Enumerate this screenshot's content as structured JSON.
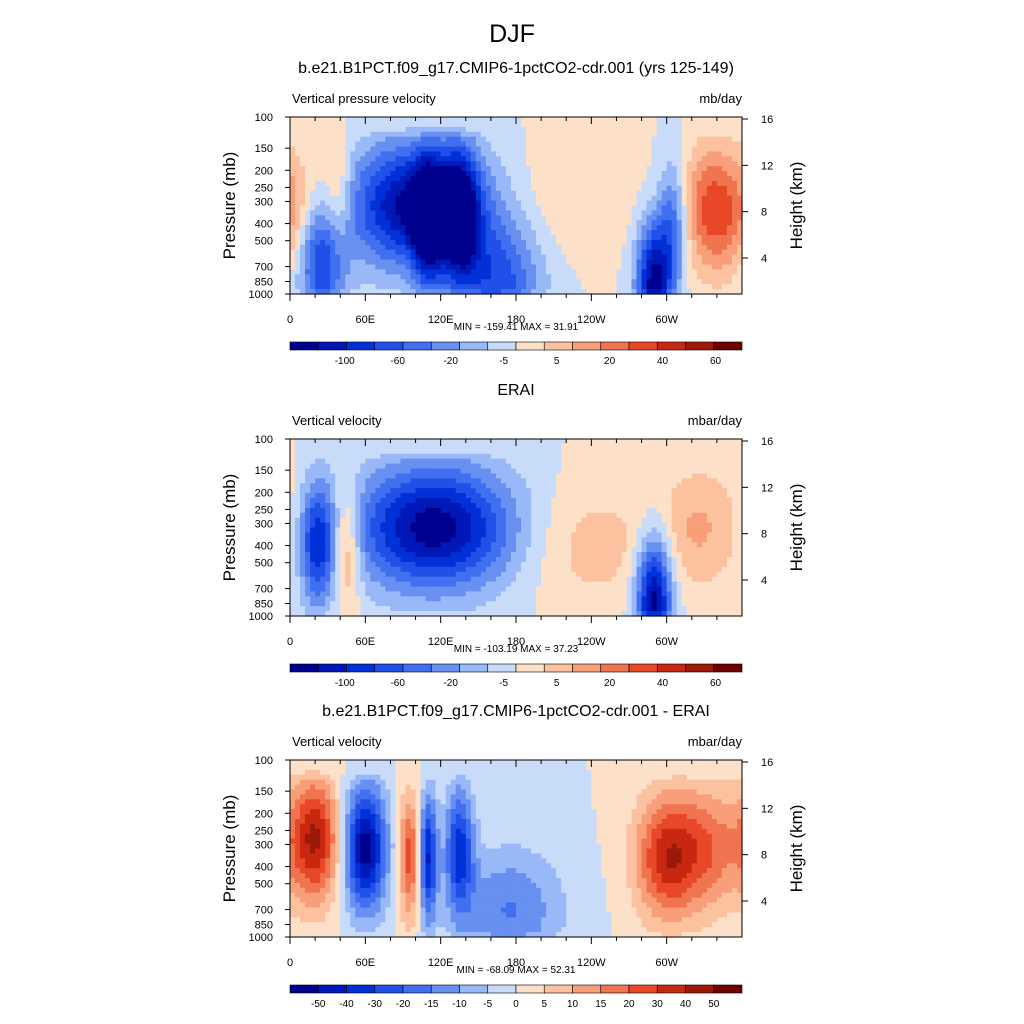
{
  "page_title": "DJF",
  "chart_data": [
    {
      "type": "heatmap",
      "title": "b.e21.B1PCT.f09_g17.CMIP6-1pctCO2-cdr.001 (yrs 125-149)",
      "left_label": "Vertical pressure velocity",
      "right_label": "mb/day",
      "ylabel": "Pressure (mb)",
      "ylabel_right": "Height (km)",
      "y_ticks": [
        "100",
        "150",
        "200",
        "250",
        "300",
        "400",
        "500",
        "700",
        "850",
        "1000"
      ],
      "y_right_ticks": [
        "16",
        "12",
        "8",
        "4"
      ],
      "x_ticks": [
        "0",
        "60E",
        "120E",
        "180",
        "120W",
        "60W"
      ],
      "stats": "MIN = -159.41  MAX =  31.91",
      "colorbar_ticks": [
        "-100",
        "-60",
        "-20",
        "-5",
        "5",
        "20",
        "40",
        "60"
      ],
      "features": [
        {
          "lon": 360,
          "w": 30,
          "lev": 0.55,
          "amp": 25
        },
        {
          "lon": 25,
          "w": 14,
          "lev": 0.8,
          "amp": -45
        },
        {
          "lon": 38,
          "w": 8,
          "lev": 0.45,
          "amp": 18
        },
        {
          "lon": 100,
          "w": 40,
          "lev": 0.5,
          "amp": -60
        },
        {
          "lon": 110,
          "w": 8,
          "lev": 0.6,
          "amp": -45
        },
        {
          "lon": 135,
          "w": 10,
          "lev": 0.55,
          "amp": -50
        },
        {
          "lon": 165,
          "w": 25,
          "lev": 0.95,
          "amp": -35
        },
        {
          "lon": 225,
          "w": 35,
          "lev": 0.45,
          "amp": 8
        },
        {
          "lon": 290,
          "w": 10,
          "lev": 0.95,
          "amp": -60
        },
        {
          "lon": 305,
          "w": 8,
          "lev": 0.6,
          "amp": -30
        },
        {
          "lon": 335,
          "w": 15,
          "lev": 0.5,
          "amp": 20
        }
      ]
    },
    {
      "type": "heatmap",
      "title": "ERAI",
      "left_label": "Vertical velocity",
      "right_label": "mbar/day",
      "ylabel": "Pressure (mb)",
      "ylabel_right": "Height (km)",
      "y_ticks": [
        "100",
        "150",
        "200",
        "250",
        "300",
        "400",
        "500",
        "700",
        "850",
        "1000"
      ],
      "y_right_ticks": [
        "16",
        "12",
        "8",
        "4"
      ],
      "x_ticks": [
        "0",
        "60E",
        "120E",
        "180",
        "120W",
        "60W"
      ],
      "stats": "MIN = -103.19  MAX =  37.23",
      "colorbar_ticks": [
        "-100",
        "-60",
        "-20",
        "-5",
        "5",
        "20",
        "40",
        "60"
      ],
      "features": [
        {
          "lon": 22,
          "w": 10,
          "lev": 0.6,
          "amp": -35
        },
        {
          "lon": 45,
          "w": 8,
          "lev": 0.6,
          "amp": 22
        },
        {
          "lon": 115,
          "w": 45,
          "lev": 0.5,
          "amp": -50
        },
        {
          "lon": 240,
          "w": 40,
          "lev": 0.6,
          "amp": 10
        },
        {
          "lon": 290,
          "w": 10,
          "lev": 0.9,
          "amp": -50
        },
        {
          "lon": 320,
          "w": 20,
          "lev": 0.5,
          "amp": 10
        },
        {
          "lon": 345,
          "w": 20,
          "lev": 0.5,
          "amp": 6
        }
      ]
    },
    {
      "type": "heatmap",
      "title": "b.e21.B1PCT.f09_g17.CMIP6-1pctCO2-cdr.001 - ERAI",
      "left_label": "Vertical velocity",
      "right_label": "mbar/day",
      "ylabel": "Pressure (mb)",
      "ylabel_right": "Height (km)",
      "y_ticks": [
        "100",
        "150",
        "200",
        "250",
        "300",
        "400",
        "500",
        "700",
        "850",
        "1000"
      ],
      "y_right_ticks": [
        "16",
        "12",
        "8",
        "4"
      ],
      "x_ticks": [
        "0",
        "60E",
        "120E",
        "180",
        "120W",
        "60W"
      ],
      "stats": "MIN = -68.09  MAX =  52.31",
      "colorbar_ticks": [
        "-50",
        "-40",
        "-30",
        "-20",
        "-15",
        "-10",
        "-5",
        "0",
        "5",
        "10",
        "15",
        "20",
        "30",
        "40",
        "50"
      ],
      "features": [
        {
          "lon": 20,
          "w": 14,
          "lev": 0.45,
          "amp": 40
        },
        {
          "lon": 60,
          "w": 12,
          "lev": 0.5,
          "amp": -50
        },
        {
          "lon": 95,
          "w": 6,
          "lev": 0.55,
          "amp": 30
        },
        {
          "lon": 110,
          "w": 5,
          "lev": 0.55,
          "amp": -40
        },
        {
          "lon": 135,
          "w": 8,
          "lev": 0.5,
          "amp": -35
        },
        {
          "lon": 175,
          "w": 30,
          "lev": 0.85,
          "amp": -20
        },
        {
          "lon": 300,
          "w": 18,
          "lev": 0.55,
          "amp": 35
        },
        {
          "lon": 335,
          "w": 20,
          "lev": 0.5,
          "amp": 22
        }
      ]
    }
  ]
}
